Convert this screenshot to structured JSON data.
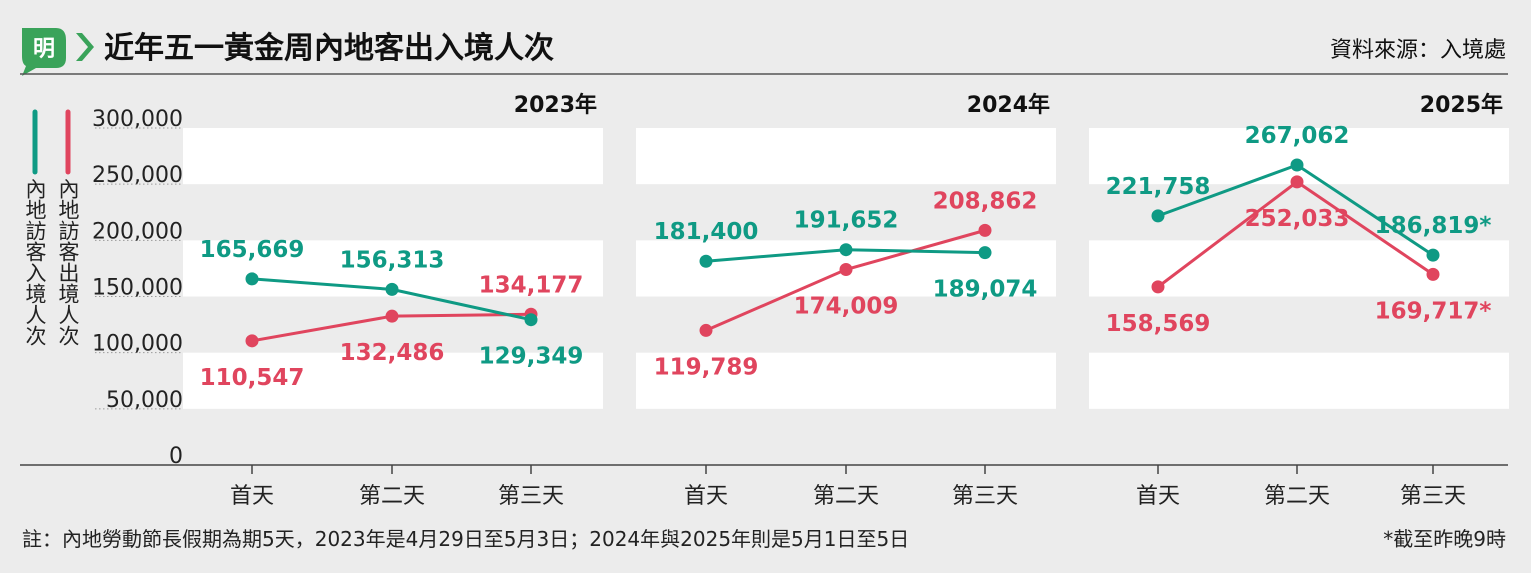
{
  "header": {
    "logo_text": "明",
    "title": "近年五一黃金周內地客出入境人次",
    "source": "資料來源：入境處"
  },
  "colors": {
    "inbound": "#0f9a84",
    "outbound": "#e0455e",
    "logo_green": "#3aa35a",
    "band": "#ffffff"
  },
  "chart_data": {
    "type": "line",
    "y_ticks": [
      "300,000",
      "250,000",
      "200,000",
      "150,000",
      "100,000",
      "50,000",
      "0"
    ],
    "ylim": [
      0,
      300000
    ],
    "categories": [
      "首天",
      "第二天",
      "第三天"
    ],
    "legend": {
      "inbound_label": "內地訪客入境人次",
      "outbound_label": "內地訪客出境人次"
    },
    "panels": [
      {
        "year": "2023年",
        "inbound": [
          165669,
          156313,
          129349
        ],
        "outbound": [
          110547,
          132486,
          134177
        ],
        "inbound_labels": [
          "165,669",
          "156,313",
          "129,349"
        ],
        "outbound_labels": [
          "110,547",
          "132,486",
          "134,177"
        ]
      },
      {
        "year": "2024年",
        "inbound": [
          181400,
          191652,
          189074
        ],
        "outbound": [
          119789,
          174009,
          208862
        ],
        "inbound_labels": [
          "181,400",
          "191,652",
          "189,074"
        ],
        "outbound_labels": [
          "119,789",
          "174,009",
          "208,862"
        ]
      },
      {
        "year": "2025年",
        "inbound": [
          221758,
          267062,
          186819
        ],
        "outbound": [
          158569,
          252033,
          169717
        ],
        "inbound_labels": [
          "221,758",
          "267,062",
          "186,819*"
        ],
        "outbound_labels": [
          "158,569",
          "252,033",
          "169,717*"
        ]
      }
    ]
  },
  "footer": {
    "note": "註：內地勞動節長假期為期5天，2023年是4月29日至5月3日；2024年與2025年則是5月1日至5日",
    "asterisk_note": "*截至昨晚9時"
  }
}
